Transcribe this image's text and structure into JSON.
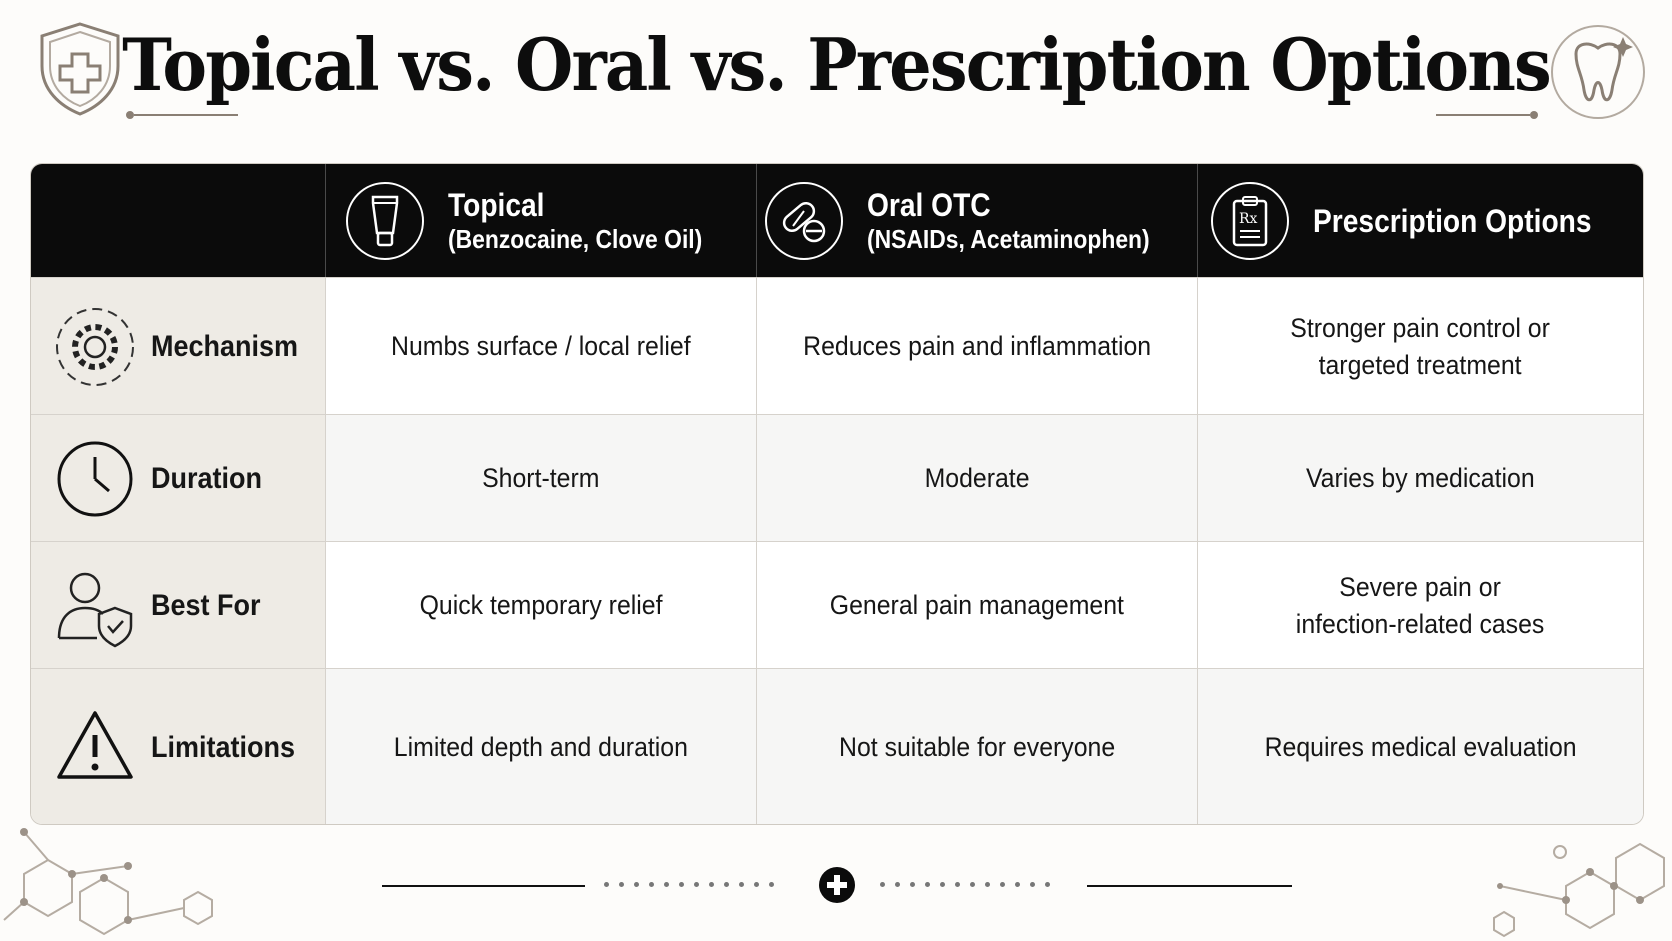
{
  "title": "Topical vs. Oral vs. Prescription Options",
  "columns": [
    {
      "name": "Topical",
      "sub": "(Benzocaine, Clove Oil)",
      "icon": "tube-icon"
    },
    {
      "name": "Oral OTC",
      "sub": "(NSAIDs, Acetaminophen)",
      "icon": "pill-icon"
    },
    {
      "name": "Prescription Options",
      "sub": "",
      "icon": "prescription-clipboard-icon"
    }
  ],
  "rows": [
    {
      "label": "Mechanism",
      "icon": "gear-icon",
      "values": [
        [
          "Numbs surface / local relief"
        ],
        [
          "Reduces pain and inflammation"
        ],
        [
          "Stronger pain control or",
          "targeted treatment"
        ]
      ]
    },
    {
      "label": "Duration",
      "icon": "clock-icon",
      "values": [
        [
          "Short-term"
        ],
        [
          "Moderate"
        ],
        [
          "Varies by medication"
        ]
      ]
    },
    {
      "label": "Best For",
      "icon": "user-shield-icon",
      "values": [
        [
          "Quick temporary relief"
        ],
        [
          "General pain management"
        ],
        [
          "Severe pain or",
          "infection-related cases"
        ]
      ]
    },
    {
      "label": "Limitations",
      "icon": "warning-icon",
      "values": [
        [
          "Limited depth and duration"
        ],
        [
          "Not suitable for everyone"
        ],
        [
          "Requires medical evaluation"
        ]
      ]
    }
  ],
  "decor": {
    "top_left_icon": "medical-shield-icon",
    "top_right_icon": "tooth-icon",
    "footer_icon": "plus-circle-icon",
    "corner_pattern": "hexagon-molecule-pattern"
  }
}
